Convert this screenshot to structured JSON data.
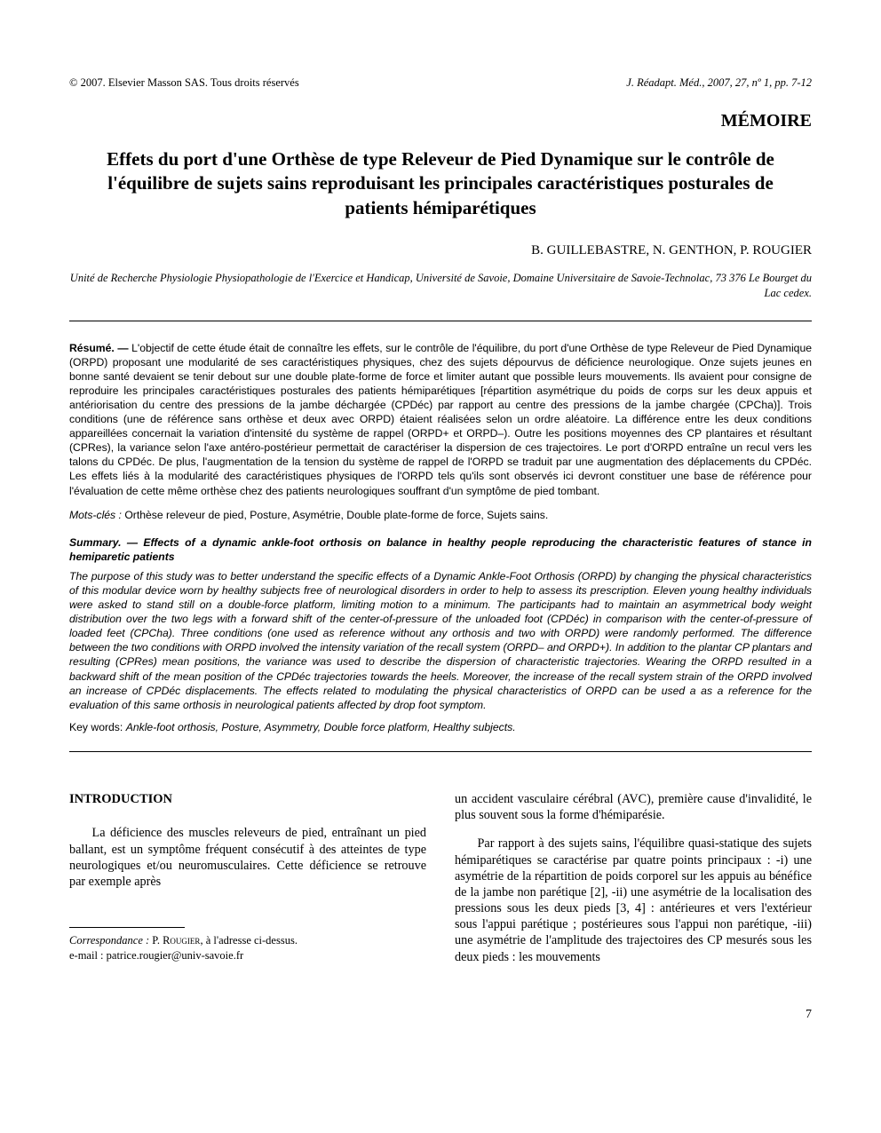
{
  "header": {
    "copyright": "© 2007. Elsevier Masson SAS. Tous droits réservés",
    "citation": "J. Réadapt. Méd., 2007, 27, nº 1, pp. 7-12"
  },
  "section_label": "MÉMOIRE",
  "title": "Effets du port d'une Orthèse de type Releveur de Pied Dynamique sur le contrôle de l'équilibre de sujets sains reproduisant les principales caractéristiques posturales de patients hémiparétiques",
  "authors": "B. GUILLEBASTRE, N. GENTHON, P. ROUGIER",
  "affiliation": "Unité de Recherche Physiologie Physiopathologie de l'Exercice et Handicap, Université de Savoie, Domaine Universitaire de Savoie-Technolac, 73 376 Le Bourget du Lac cedex.",
  "resume": {
    "label": "Résumé. —",
    "body": "L'objectif de cette étude était de connaître les effets, sur le contrôle de l'équilibre, du port d'une Orthèse de type Releveur de Pied Dynamique (ORPD) proposant une modularité de ses caractéristiques physiques, chez des sujets dépourvus de déficience neurologique. Onze sujets jeunes en bonne santé devaient se tenir debout sur une double plate-forme de force et limiter autant que possible leurs mouvements. Ils avaient pour consigne de reproduire les principales caractéristiques posturales des patients hémiparétiques [répartition asymétrique du poids de corps sur les deux appuis et antériorisation du centre des pressions de la jambe déchargée (CPDéc) par rapport au centre des pressions de la jambe chargée (CPCha)]. Trois conditions (une de référence sans orthèse et deux avec ORPD) étaient réalisées selon un ordre aléatoire. La différence entre les deux conditions appareillées concernait la variation d'intensité du système de rappel (ORPD+ et ORPD–). Outre les positions moyennes des CP plantaires et résultant (CPRes), la variance selon l'axe antéro-postérieur permettait de caractériser la dispersion de ces trajectoires. Le port d'ORPD entraîne un recul vers les talons du CPDéc. De plus, l'augmentation de la tension du système de rappel de l'ORPD se traduit par une augmentation des déplacements du CPDéc. Les effets liés à la modularité des caractéristiques physiques de l'ORPD tels qu'ils sont observés ici devront constituer une base de référence pour l'évaluation de cette même orthèse chez des patients neurologiques souffrant d'un symptôme de pied tombant."
  },
  "mots_cles": {
    "label": "Mots-clés :",
    "values": "Orthèse releveur de pied, Posture, Asymétrie, Double plate-forme de force, Sujets sains."
  },
  "summary": {
    "label": "Summary. —",
    "title": "Effects of a dynamic ankle-foot orthosis on balance in healthy people reproducing the characteristic features of stance in hemiparetic patients",
    "body": "The purpose of this study was to better understand the specific effects of a Dynamic Ankle-Foot Orthosis (ORPD) by changing the physical characteristics of this modular device worn by healthy subjects free of neurological disorders in order to help to assess its prescription. Eleven young healthy individuals were asked to stand still on a double-force platform, limiting motion to a minimum. The participants had to maintain an asymmetrical body weight distribution over the two legs with a forward shift of the center-of-pressure of the unloaded foot (CPDéc) in comparison with the center-of-pressure of loaded feet (CPCha). Three conditions (one used as reference without any orthosis and two with ORPD) were randomly performed. The difference between the two conditions with ORPD involved the intensity variation of the recall system (ORPD– and ORPD+). In addition to the plantar CP plantars and resulting (CPRes) mean positions, the variance was used to describe the dispersion of characteristic trajectories. Wearing the ORPD resulted in a backward shift of the mean position of the CPDéc trajectories towards the heels. Moreover, the increase of the recall system strain of the ORPD involved an increase of CPDéc displacements. The effects related to modulating the physical characteristics of ORPD can be used a as a reference for the evaluation of this same orthosis in neurological patients affected by drop foot symptom."
  },
  "keywords_en": {
    "label": "Key words:",
    "values": "Ankle-foot orthosis, Posture, Asymmetry, Double force platform, Healthy subjects."
  },
  "intro_heading": "INTRODUCTION",
  "col_left_p1": "La déficience des muscles releveurs de pied, entraînant un pied ballant, est un symptôme fréquent consécutif à des atteintes de type neurologiques et/ou neuromusculaires. Cette déficience se retrouve par exemple après",
  "col_right_p1": "un accident vasculaire cérébral (AVC), première cause d'invalidité, le plus souvent sous la forme d'hémiparésie.",
  "col_right_p2": "Par rapport à des sujets sains, l'équilibre quasi-statique des sujets hémiparétiques se caractérise par quatre points principaux : -i) une asymétrie de la répartition de poids corporel sur les appuis au bénéfice de la jambe non parétique [2], -ii) une asymétrie de la localisation des pressions sous les deux pieds [3, 4] : antérieures et vers l'extérieur sous l'appui parétique ; postérieures sous l'appui non parétique, -iii) une asymétrie de l'amplitude des trajectoires des CP mesurés sous les deux pieds : les mouvements",
  "footnote": {
    "label": "Correspondance :",
    "name": "P. Rougier",
    "rest": ", à l'adresse ci-dessus.",
    "email": "e-mail : patrice.rougier@univ-savoie.fr"
  },
  "page_number": "7"
}
